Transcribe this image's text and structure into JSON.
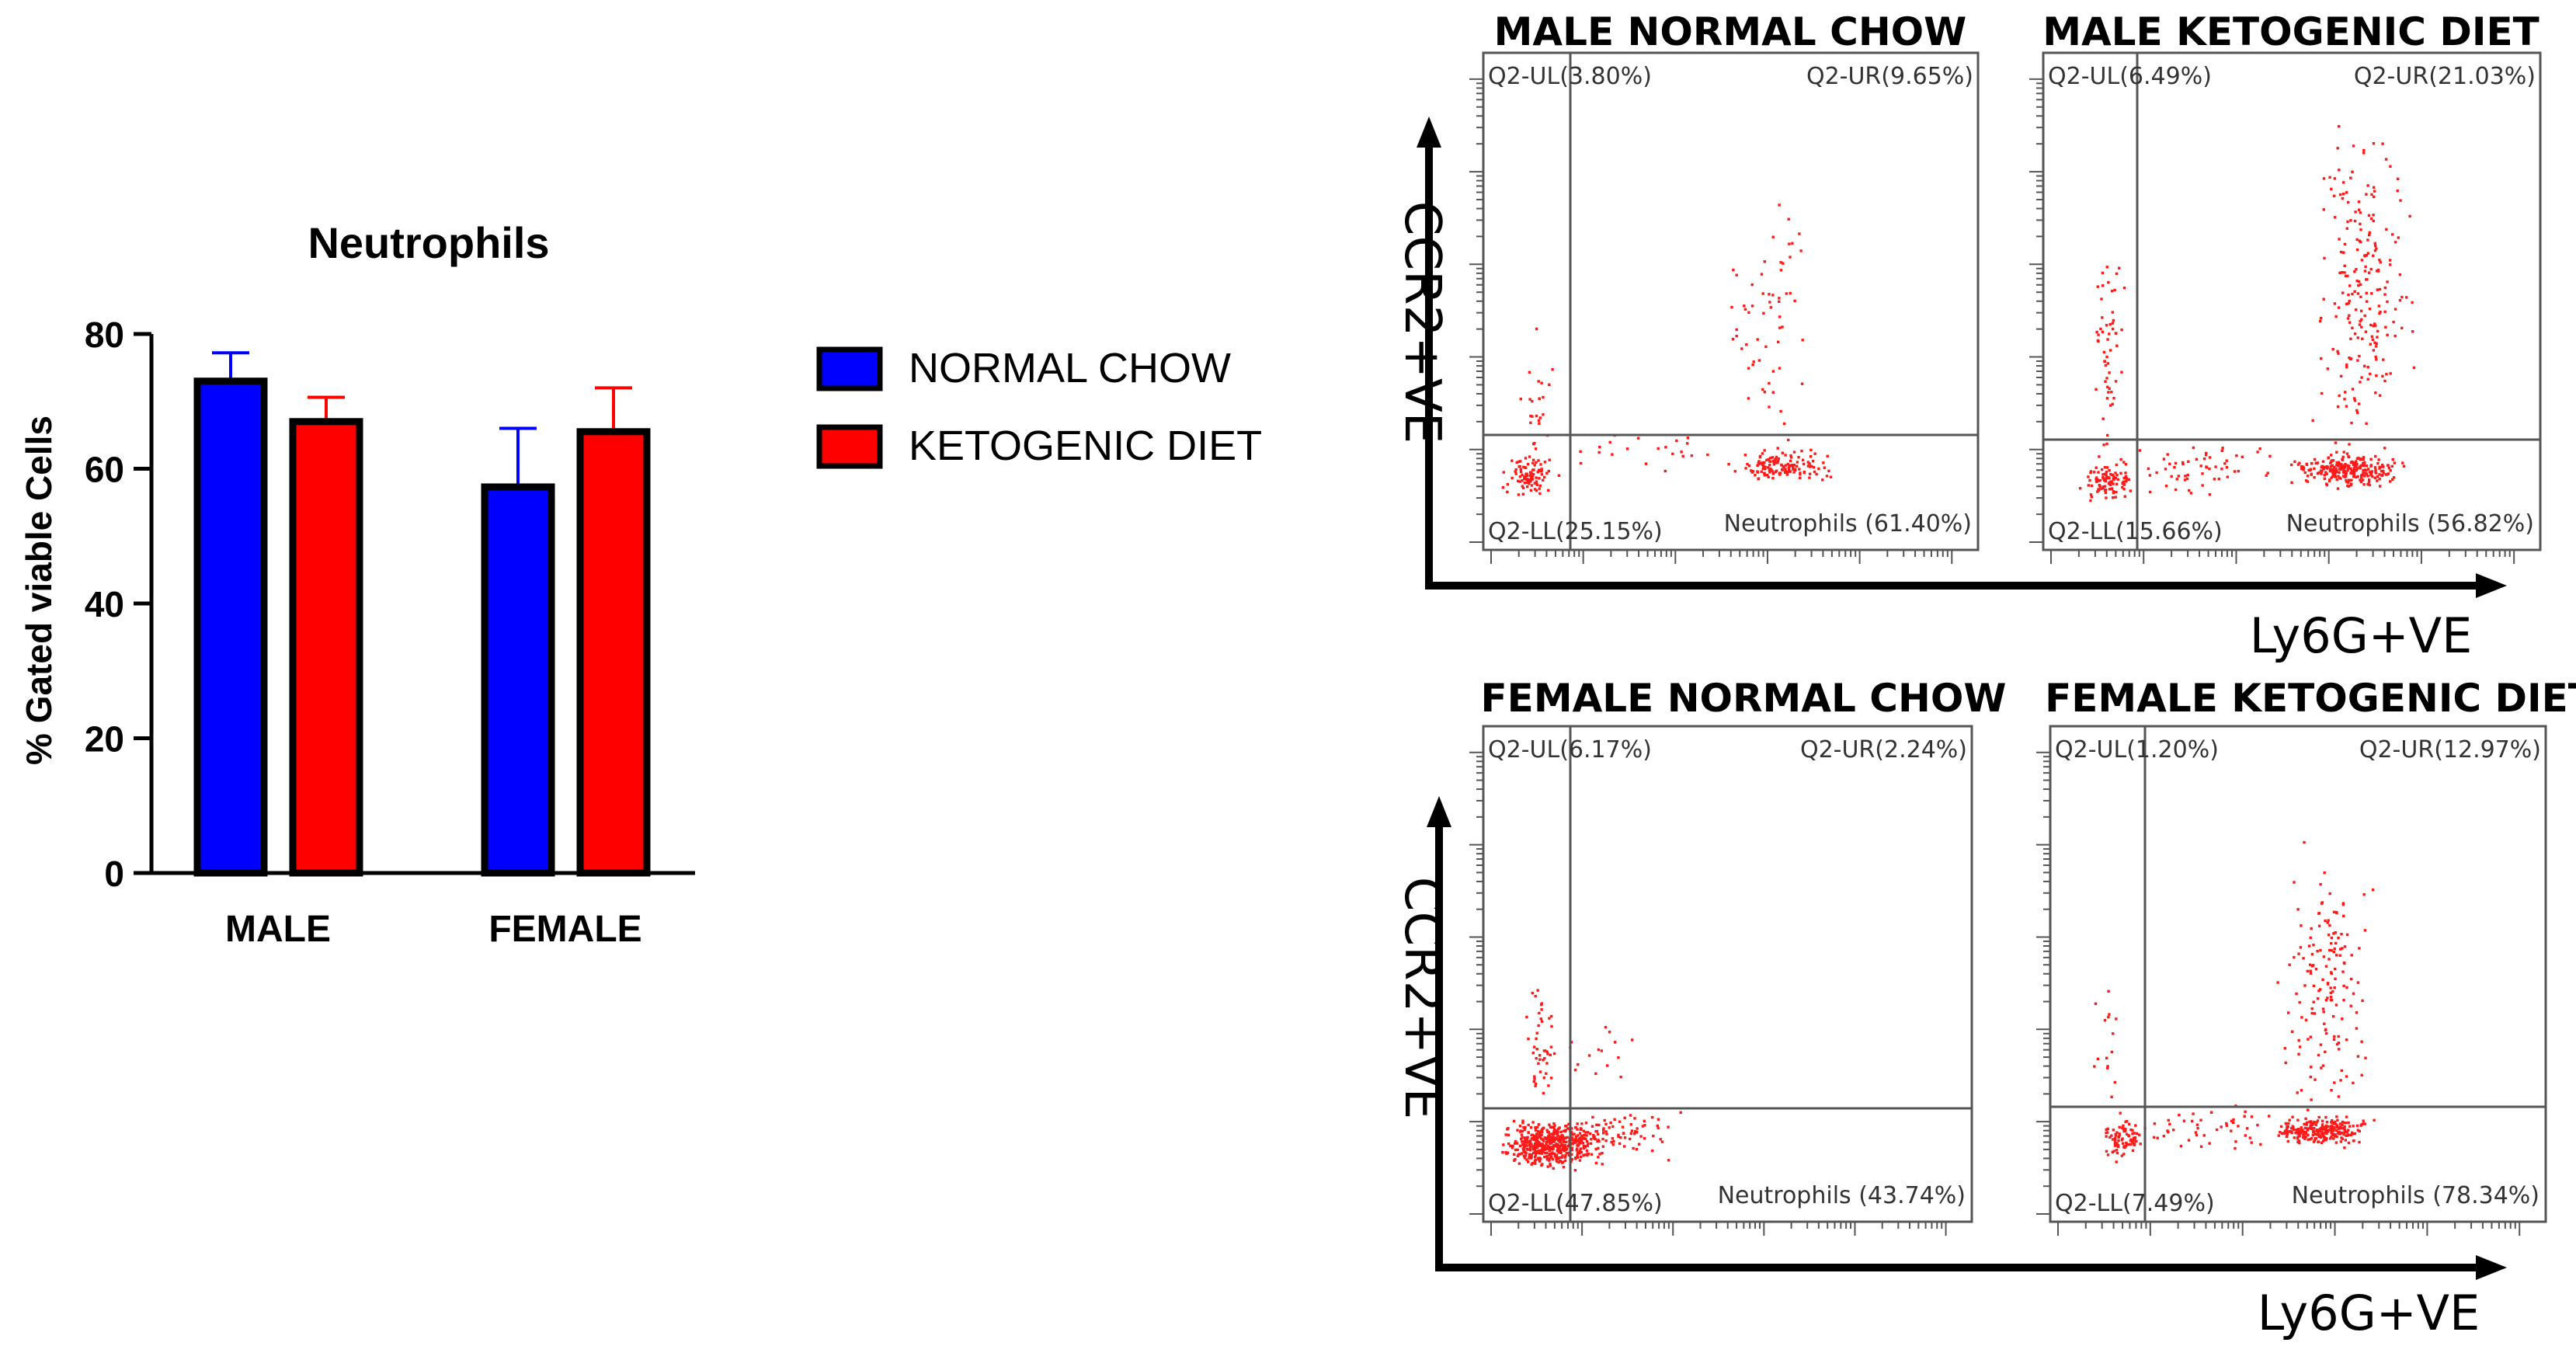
{
  "colors": {
    "normal": "#0000ff",
    "keto": "#ff0000",
    "axis": "#000000",
    "dot": "#ff0000",
    "gate": "#555555"
  },
  "chart_data": [
    {
      "type": "bar",
      "title": "Neutrophils",
      "xlabel": "",
      "ylabel": "% Gated viable Cells",
      "categories": [
        "MALE",
        "FEMALE"
      ],
      "ylim": [
        0,
        80
      ],
      "yticks": [
        0,
        20,
        40,
        60,
        80
      ],
      "yticklabels": [
        "0",
        "20",
        "40",
        "60",
        "80"
      ],
      "legend_position": "right",
      "series": [
        {
          "name": "NORMAL CHOW",
          "color": "#0000ff",
          "values": [
            73,
            57.3
          ],
          "errors": [
            4.2,
            8.7
          ]
        },
        {
          "name": "KETOGENIC DIET",
          "color": "#ff0000",
          "values": [
            67,
            65.5
          ],
          "errors": [
            3.6,
            6.5
          ]
        }
      ]
    },
    {
      "type": "scatter",
      "title": "MALE NORMAL CHOW",
      "xlabel": "Ly6G+VE",
      "ylabel": "CCR2+VE",
      "quadrants": {
        "UL": "Q2-UL(3.80%)",
        "UR": "Q2-UR(9.65%)",
        "LL": "Q2-LL(25.15%)",
        "LR": "Neutrophils (61.40%)"
      }
    },
    {
      "type": "scatter",
      "title": "MALE KETOGENIC DIET",
      "xlabel": "Ly6G+VE",
      "ylabel": "CCR2+VE",
      "quadrants": {
        "UL": "Q2-UL(6.49%)",
        "UR": "Q2-UR(21.03%)",
        "LL": "Q2-LL(15.66%)",
        "LR": "Neutrophils (56.82%)"
      }
    },
    {
      "type": "scatter",
      "title": "FEMALE NORMAL CHOW",
      "xlabel": "Ly6G+VE",
      "ylabel": "CCR2+VE",
      "quadrants": {
        "UL": "Q2-UL(6.17%)",
        "UR": "Q2-UR(2.24%)",
        "LL": "Q2-LL(47.85%)",
        "LR": "Neutrophils (43.74%)"
      }
    },
    {
      "type": "scatter",
      "title": "FEMALE KETOGENIC DIET",
      "xlabel": "Ly6G+VE",
      "ylabel": "CCR2+VE",
      "quadrants": {
        "UL": "Q2-UL(1.20%)",
        "UR": "Q2-UR(12.97%)",
        "LL": "Q2-LL(7.49%)",
        "LR": "Neutrophils (78.34%)"
      }
    }
  ],
  "flow_axes": {
    "top": {
      "ylabel": "CCR2+VE",
      "xlabel": "Ly6G+VE"
    },
    "bottom": {
      "ylabel": "CCR2+VE",
      "xlabel": "Ly6G+VE"
    }
  }
}
